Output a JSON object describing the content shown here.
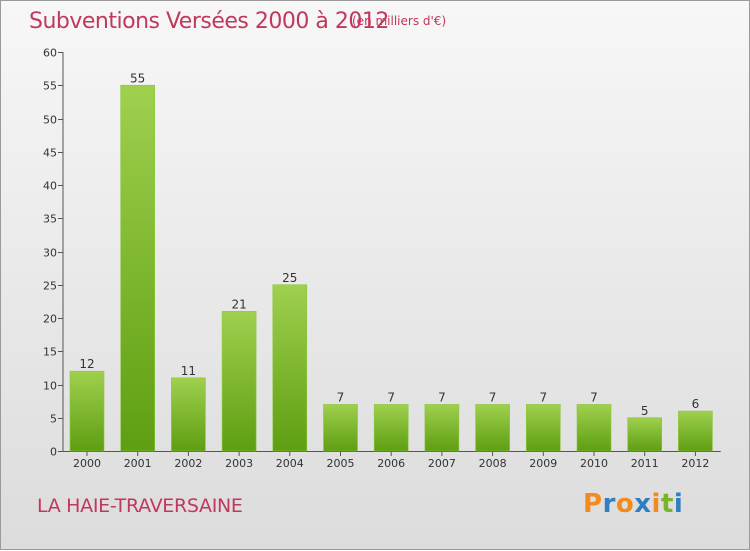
{
  "header": {
    "title": "Subventions Versées 2000 à 2012",
    "unit": "(en milliers d'€)"
  },
  "footer": {
    "commune": "LA HAIE-TRAVERSAINE",
    "logo": "Proxiti"
  },
  "colors": {
    "title": "#c0385a",
    "bar_top": "#9fd04e",
    "bar_bottom": "#5e9e12",
    "logo_letters": [
      "#f28a1e",
      "#2f7fc1",
      "#f28a1e",
      "#2f7fc1",
      "#f28a1e",
      "#7ab32a",
      "#2f7fc1"
    ]
  },
  "chart_data": {
    "type": "bar",
    "title": "Subventions Versées 2000 à 2012",
    "xlabel": "",
    "ylabel": "",
    "categories": [
      "2000",
      "2001",
      "2002",
      "2003",
      "2004",
      "2005",
      "2006",
      "2007",
      "2008",
      "2009",
      "2010",
      "2011",
      "2012"
    ],
    "values": [
      12,
      55,
      11,
      21,
      25,
      7,
      7,
      7,
      7,
      7,
      7,
      5,
      6
    ],
    "ylim": [
      0,
      60
    ],
    "yticks": [
      0,
      5,
      10,
      15,
      20,
      25,
      30,
      35,
      40,
      45,
      50,
      55,
      60
    ],
    "grid": false,
    "data_labels": true
  }
}
